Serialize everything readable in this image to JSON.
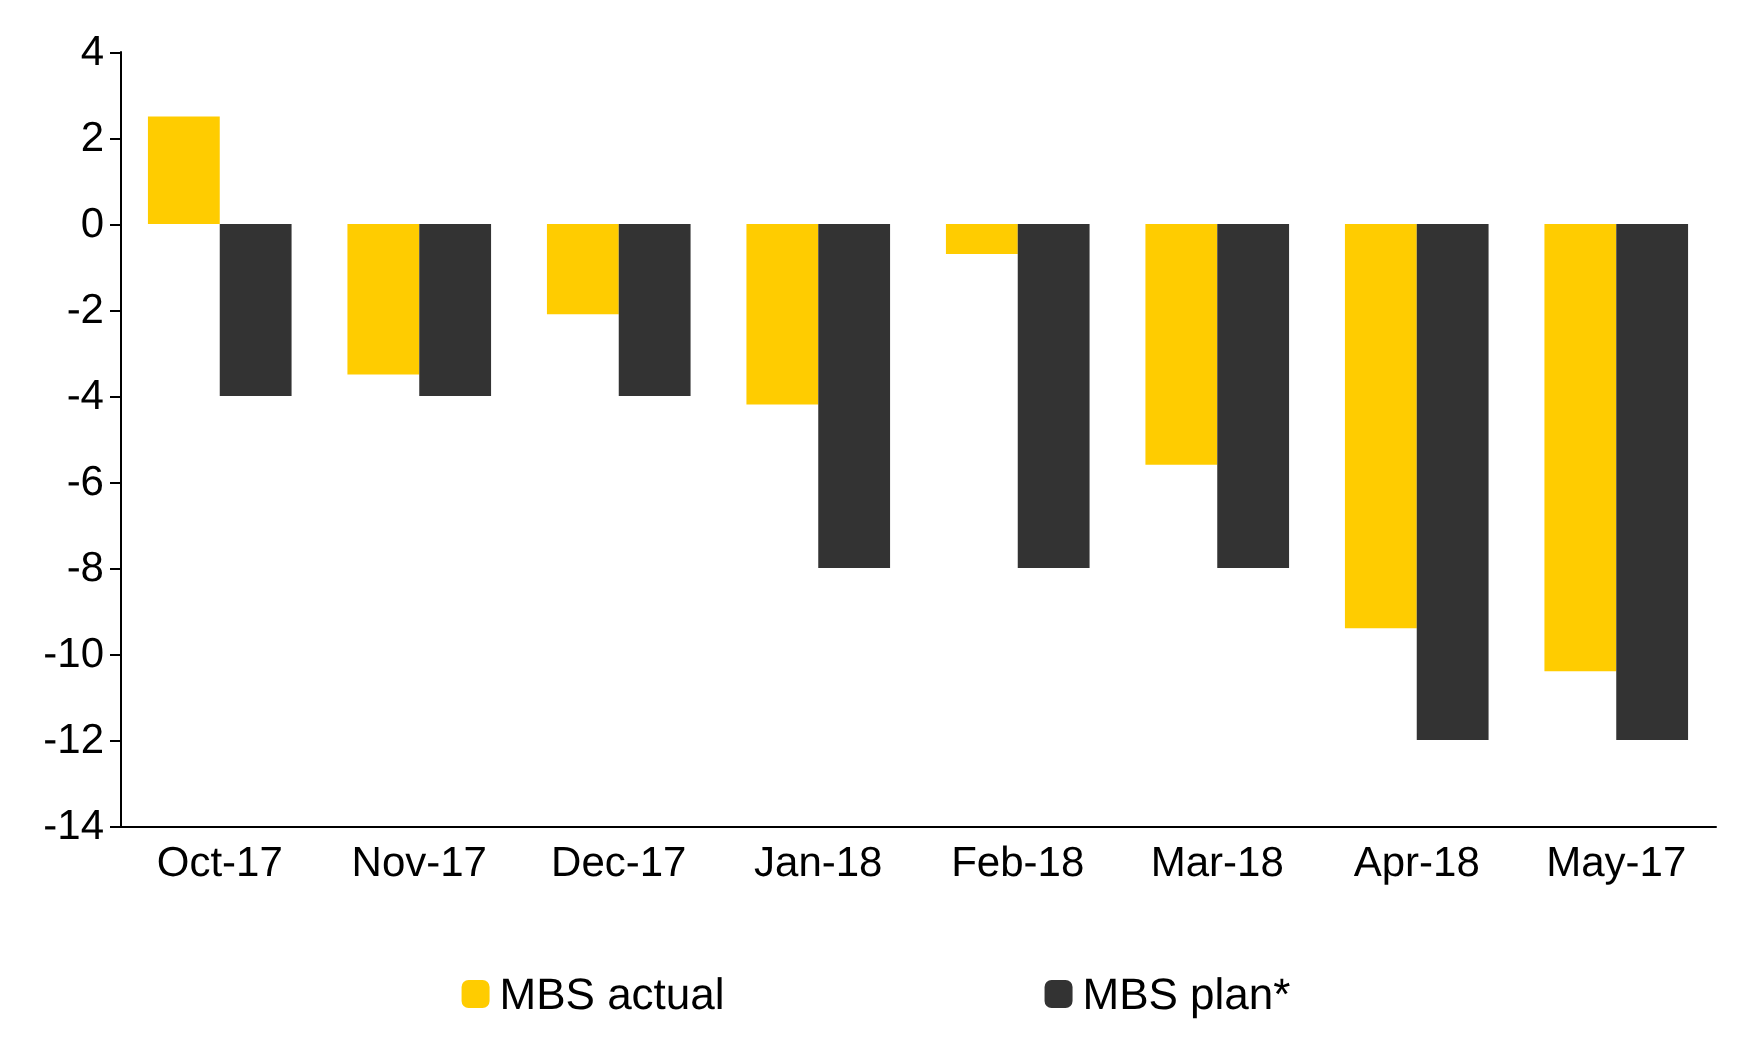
{
  "chart_data": {
    "type": "bar",
    "categories": [
      "Oct-17",
      "Nov-17",
      "Dec-17",
      "Jan-18",
      "Feb-18",
      "Mar-18",
      "Apr-18",
      "May-17"
    ],
    "series": [
      {
        "name": "MBS actual",
        "color": "#ffcc00",
        "values": [
          2.5,
          -3.5,
          -2.1,
          -4.2,
          -0.7,
          -5.6,
          -9.4,
          -10.4
        ]
      },
      {
        "name": "MBS plan*",
        "color": "#333333",
        "values": [
          -4,
          -4,
          -4,
          -8,
          -8,
          -8,
          -12,
          -12
        ]
      }
    ],
    "ylim": [
      -14,
      4
    ],
    "yticks": [
      -14,
      -12,
      -10,
      -8,
      -6,
      -4,
      -2,
      0,
      2,
      4
    ],
    "grid": false,
    "legend": "bottom"
  }
}
